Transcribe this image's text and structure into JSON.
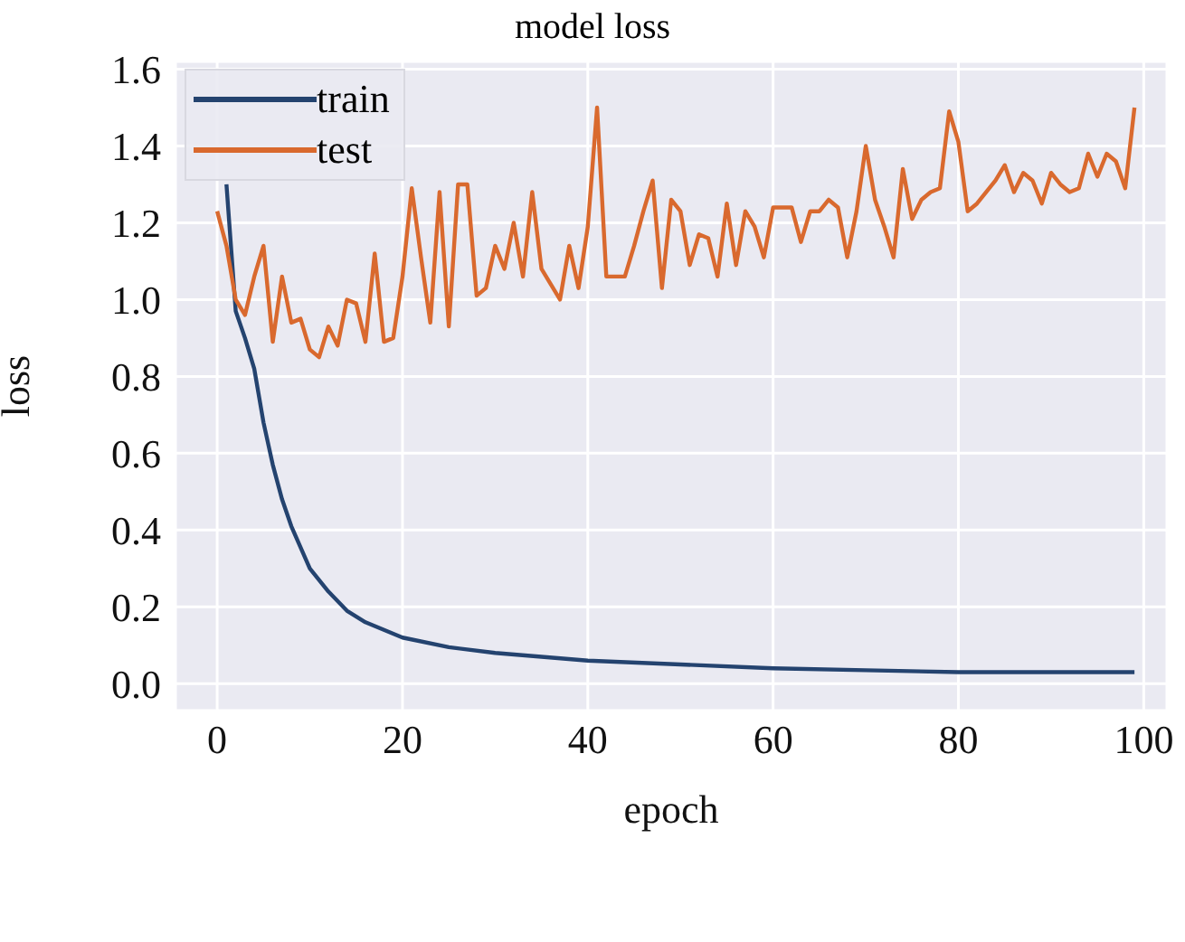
{
  "chart_data": {
    "type": "line",
    "title": "model loss",
    "xlabel": "epoch",
    "ylabel": "loss",
    "xlim": [
      -4.5,
      102.5
    ],
    "ylim": [
      -0.07,
      1.62
    ],
    "xticks": [
      0,
      20,
      40,
      60,
      80,
      100
    ],
    "yticks": [
      {
        "value": 0,
        "label": "0.0"
      },
      {
        "value": 0.2,
        "label": "0.2"
      },
      {
        "value": 0.4,
        "label": "0.4"
      },
      {
        "value": 0.6,
        "label": "0.6"
      },
      {
        "value": 0.8,
        "label": "0.8"
      },
      {
        "value": 1.0,
        "label": "1.0"
      },
      {
        "value": 1.2,
        "label": "1.2"
      },
      {
        "value": 1.4,
        "label": "1.4"
      },
      {
        "value": 1.6,
        "label": "1.6"
      }
    ],
    "grid": true,
    "legend": "top left",
    "marker": "none",
    "line_style": "solid",
    "series": [
      {
        "name": "train",
        "color": "#24436f",
        "x": [
          1,
          2,
          3,
          4,
          5,
          6,
          7,
          8,
          10,
          12,
          14,
          16,
          18,
          20,
          25,
          30,
          40,
          50,
          60,
          70,
          80,
          90,
          99
        ],
        "values": [
          1.3,
          0.97,
          0.9,
          0.82,
          0.68,
          0.57,
          0.48,
          0.41,
          0.3,
          0.24,
          0.19,
          0.16,
          0.14,
          0.12,
          0.095,
          0.08,
          0.06,
          0.05,
          0.04,
          0.035,
          0.03,
          0.03,
          0.03
        ]
      },
      {
        "name": "test",
        "color": "#d9692e",
        "x": [
          0,
          1,
          2,
          3,
          4,
          5,
          6,
          7,
          8,
          9,
          10,
          11,
          12,
          13,
          14,
          15,
          16,
          17,
          18,
          19,
          20,
          21,
          22,
          23,
          24,
          25,
          26,
          27,
          28,
          29,
          30,
          31,
          32,
          33,
          34,
          35,
          36,
          37,
          38,
          39,
          40,
          41,
          42,
          43,
          44,
          45,
          46,
          47,
          48,
          49,
          50,
          51,
          52,
          53,
          54,
          55,
          56,
          57,
          58,
          59,
          60,
          61,
          62,
          63,
          64,
          65,
          66,
          67,
          68,
          69,
          70,
          71,
          72,
          73,
          74,
          75,
          76,
          77,
          78,
          79,
          80,
          81,
          82,
          83,
          84,
          85,
          86,
          87,
          88,
          89,
          90,
          91,
          92,
          93,
          94,
          95,
          96,
          97,
          98,
          99
        ],
        "values": [
          1.23,
          1.14,
          1.0,
          0.96,
          1.06,
          1.14,
          0.89,
          1.06,
          0.94,
          0.95,
          0.87,
          0.85,
          0.93,
          0.88,
          1.0,
          0.99,
          0.89,
          1.12,
          0.89,
          0.9,
          1.06,
          1.29,
          1.11,
          0.94,
          1.28,
          0.93,
          1.3,
          1.3,
          1.01,
          1.03,
          1.14,
          1.08,
          1.2,
          1.06,
          1.28,
          1.08,
          1.04,
          1.0,
          1.14,
          1.03,
          1.19,
          1.5,
          1.06,
          1.06,
          1.06,
          1.14,
          1.23,
          1.31,
          1.03,
          1.26,
          1.23,
          1.09,
          1.17,
          1.16,
          1.06,
          1.25,
          1.09,
          1.23,
          1.19,
          1.11,
          1.24,
          1.24,
          1.24,
          1.15,
          1.23,
          1.23,
          1.26,
          1.24,
          1.11,
          1.23,
          1.4,
          1.26,
          1.19,
          1.11,
          1.34,
          1.21,
          1.26,
          1.28,
          1.29,
          1.49,
          1.41,
          1.23,
          1.25,
          1.28,
          1.31,
          1.35,
          1.28,
          1.33,
          1.31,
          1.25,
          1.33,
          1.3,
          1.28,
          1.29,
          1.38,
          1.32,
          1.38,
          1.36,
          1.29,
          1.5
        ]
      }
    ]
  }
}
